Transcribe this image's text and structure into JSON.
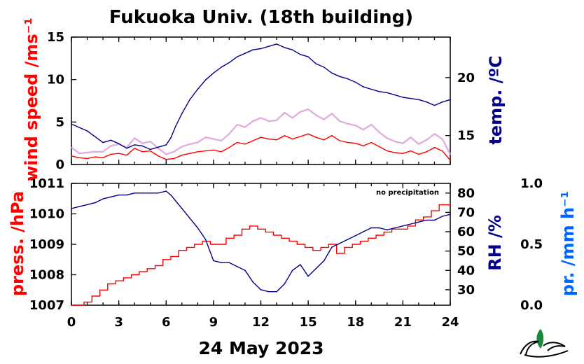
{
  "chart_data": [
    {
      "type": "line",
      "title": "Fukuoka Univ. (18th building)",
      "x_tick_labels": [
        "0",
        "3",
        "6",
        "9",
        "12",
        "15",
        "18",
        "21",
        "24"
      ],
      "xlim": [
        0,
        24
      ],
      "left_axis": {
        "label": "wind speed /ms⁻¹",
        "ylim": [
          0,
          15
        ],
        "ticks": [
          0,
          5,
          10,
          15
        ],
        "tick_labels": [
          "0",
          "5",
          "10",
          "15"
        ]
      },
      "right_axis": {
        "label": "temp. /ºC",
        "ylim": [
          12.5,
          23.5
        ],
        "ticks": [
          15,
          20
        ],
        "tick_labels": [
          "15",
          "20"
        ]
      },
      "series": [
        {
          "axis": "right",
          "color": "#00008b",
          "x": [
            0,
            0.5,
            1,
            1.5,
            2,
            2.5,
            3,
            3.5,
            4,
            4.5,
            5,
            5.5,
            6,
            6.3,
            6.6,
            7,
            7.5,
            8,
            8.5,
            9,
            9.5,
            10,
            10.5,
            11,
            11.5,
            12,
            12.5,
            13,
            13.5,
            14,
            14.5,
            15,
            15.5,
            16,
            16.5,
            17,
            17.5,
            18,
            18.5,
            19,
            19.5,
            20,
            20.5,
            21,
            21.5,
            22,
            22.5,
            23,
            23.5,
            24
          ],
          "y": [
            16,
            15.7,
            15.4,
            14.9,
            14.4,
            14.6,
            14.3,
            13.9,
            14.2,
            14.1,
            13.8,
            14,
            14.2,
            14.8,
            15.8,
            16.9,
            18.1,
            19,
            19.8,
            20.4,
            20.9,
            21.3,
            21.8,
            22.1,
            22.4,
            22.5,
            22.7,
            22.9,
            22.6,
            22.4,
            22,
            21.8,
            21.2,
            20.9,
            20.4,
            20.1,
            19.9,
            19.6,
            19.2,
            19,
            18.8,
            18.7,
            18.5,
            18.3,
            18.2,
            18.1,
            17.9,
            17.6,
            17.9,
            18.1
          ]
        },
        {
          "axis": "left",
          "color": "#ff0000",
          "x": [
            0,
            0.5,
            1,
            1.5,
            2,
            2.5,
            3,
            3.5,
            4,
            4.5,
            5,
            5.5,
            6,
            6.5,
            7,
            7.5,
            8,
            8.5,
            9,
            9.5,
            10,
            10.5,
            11,
            11.5,
            12,
            12.5,
            13,
            13.5,
            14,
            14.5,
            15,
            15.5,
            16,
            16.5,
            17,
            17.5,
            18,
            18.5,
            19,
            19.5,
            20,
            20.5,
            21,
            21.5,
            22,
            22.5,
            23,
            23.5,
            24
          ],
          "y": [
            1,
            0.8,
            0.7,
            0.9,
            0.8,
            1.2,
            1.3,
            1.1,
            1.9,
            1.5,
            1.6,
            1.0,
            0.6,
            0.7,
            1.1,
            1.3,
            1.5,
            1.6,
            1.7,
            1.5,
            2.0,
            2.6,
            2.4,
            2.8,
            3.2,
            3.0,
            2.9,
            3.4,
            3.0,
            3.3,
            3.6,
            3.2,
            2.9,
            3.4,
            2.8,
            2.6,
            2.5,
            2.2,
            2.6,
            2.1,
            1.6,
            1.4,
            1.3,
            1.6,
            1.2,
            1.5,
            2.0,
            1.6,
            0.5
          ]
        },
        {
          "axis": "left",
          "color": "#dda0dd",
          "x": [
            0,
            0.5,
            1,
            1.5,
            2,
            2.5,
            3,
            3.5,
            4,
            4.5,
            5,
            5.5,
            6,
            6.5,
            7,
            7.5,
            8,
            8.5,
            9,
            9.5,
            10,
            10.5,
            11,
            11.5,
            12,
            12.5,
            13,
            13.5,
            14,
            14.5,
            15,
            15.5,
            16,
            16.5,
            17,
            17.5,
            18,
            18.5,
            19,
            19.5,
            20,
            20.5,
            21,
            21.5,
            22,
            22.5,
            23,
            23.5,
            24
          ],
          "y": [
            2,
            1.3,
            1.4,
            1.5,
            1.5,
            2.2,
            2.4,
            2.0,
            3.1,
            2.5,
            2.7,
            1.9,
            1.2,
            1.5,
            2.1,
            2.4,
            2.6,
            3.2,
            3.0,
            2.8,
            3.6,
            4.7,
            4.4,
            5.1,
            5.5,
            5.1,
            5.2,
            6.1,
            5.5,
            6.2,
            6.5,
            5.8,
            5.3,
            6.0,
            5.1,
            4.8,
            4.6,
            4.1,
            4.7,
            3.8,
            3.1,
            2.7,
            2.5,
            3.2,
            2.4,
            2.9,
            3.6,
            3.0,
            1.2
          ]
        }
      ]
    },
    {
      "type": "line",
      "x_tick_labels": [
        "0",
        "3",
        "6",
        "9",
        "12",
        "15",
        "18",
        "21",
        "24"
      ],
      "xlim": [
        0,
        24
      ],
      "xlabel": "24 May 2023",
      "annotation": "no precipitation",
      "left_axis": {
        "label": "press. /hPa",
        "ylim": [
          1007,
          1011
        ],
        "ticks": [
          1007,
          1008,
          1009,
          1010,
          1011
        ],
        "tick_labels": [
          "1007",
          "1008",
          "1009",
          "1010",
          "1011"
        ]
      },
      "right_axis": {
        "label": "RH /%",
        "ylim": [
          22,
          85
        ],
        "ticks": [
          30,
          40,
          50,
          60,
          70,
          80
        ],
        "tick_labels": [
          "30",
          "40",
          "50",
          "60",
          "70",
          "80"
        ]
      },
      "far_right_axis": {
        "label": "pr. /mm h⁻¹",
        "ylim": [
          0,
          1
        ],
        "ticks": [
          0,
          0.5,
          1
        ],
        "tick_labels": [
          "0.0",
          "0.5",
          "1.0"
        ]
      },
      "series": [
        {
          "axis": "left",
          "color": "#ff0000",
          "step": true,
          "x": [
            0,
            0.8,
            1.3,
            1.8,
            2.3,
            2.8,
            3.3,
            3.8,
            4.3,
            4.8,
            5.3,
            5.8,
            6.3,
            6.8,
            7.3,
            7.8,
            8.3,
            8.8,
            9.3,
            9.8,
            10.3,
            10.8,
            11.3,
            11.8,
            12.3,
            12.8,
            13.3,
            13.8,
            14.3,
            14.8,
            15.3,
            15.8,
            16.3,
            16.8,
            17.3,
            17.8,
            18.3,
            18.8,
            19.3,
            19.8,
            20.3,
            20.8,
            21.3,
            21.8,
            22.3,
            22.8,
            23.3,
            23.8,
            24
          ],
          "y": [
            1007,
            1007.1,
            1007.3,
            1007.5,
            1007.7,
            1007.8,
            1007.9,
            1008.0,
            1008.1,
            1008.2,
            1008.3,
            1008.5,
            1008.6,
            1008.8,
            1008.9,
            1009.0,
            1009.1,
            1009.0,
            1009.0,
            1009.2,
            1009.3,
            1009.5,
            1009.6,
            1009.5,
            1009.4,
            1009.3,
            1009.2,
            1009.1,
            1009.0,
            1008.9,
            1008.8,
            1008.9,
            1009.0,
            1008.7,
            1008.9,
            1009.0,
            1009.1,
            1009.2,
            1009.3,
            1009.4,
            1009.5,
            1009.5,
            1009.6,
            1009.8,
            1009.9,
            1010.1,
            1010.3,
            1010.3,
            1010.3
          ]
        },
        {
          "axis": "right",
          "color": "#00008b",
          "x": [
            0,
            0.5,
            1,
            1.5,
            2,
            2.5,
            3,
            3.5,
            4,
            4.5,
            5,
            5.5,
            6,
            6.3,
            6.6,
            7,
            7.5,
            8,
            8.5,
            9,
            9.5,
            10,
            10.5,
            11,
            11.5,
            12,
            12.5,
            13,
            13.5,
            14,
            14.5,
            15,
            15.5,
            16,
            16.5,
            17,
            17.5,
            18,
            18.5,
            19,
            19.5,
            20,
            20.5,
            21,
            21.5,
            22,
            22.5,
            23,
            23.5,
            24
          ],
          "y": [
            72,
            73,
            74,
            75,
            77,
            78,
            79,
            79,
            80,
            80,
            80,
            80,
            81,
            79,
            76,
            72,
            67,
            62,
            56,
            45,
            44,
            44,
            42,
            40,
            34,
            30,
            29,
            29,
            33,
            40,
            43,
            37,
            41,
            45,
            52,
            54,
            56,
            58,
            60,
            62,
            62,
            61,
            62,
            63,
            64,
            65,
            66,
            66,
            68,
            69
          ]
        }
      ]
    }
  ]
}
